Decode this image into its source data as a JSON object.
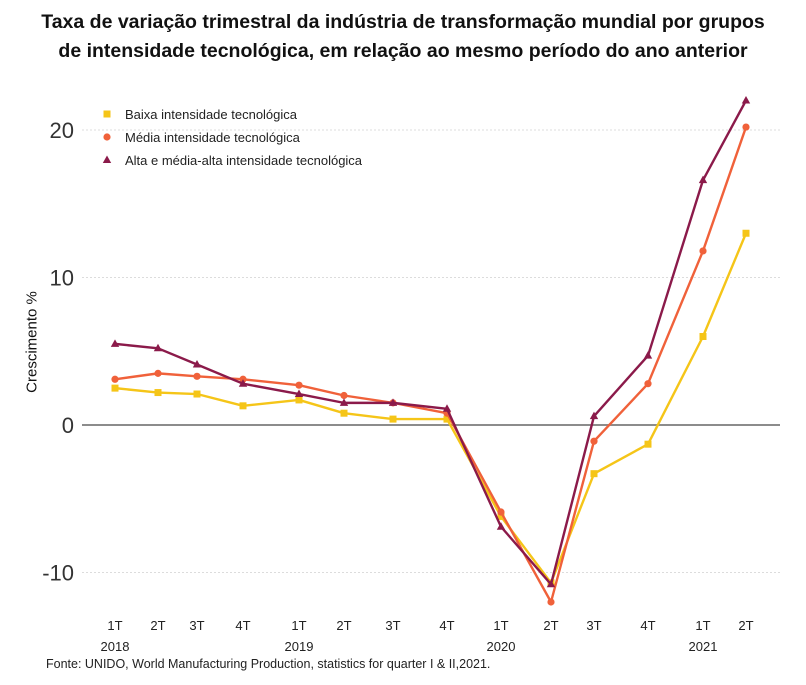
{
  "title_lines": [
    "Taxa de variação trimestral da indústria de transformação mundial por grupos",
    "de intensidade tecnológica, em relação ao mesmo período do ano anterior"
  ],
  "source": "Fonte: UNIDO, World Manufacturing Production, statistics for quarter I & II,2021.",
  "chart_data": {
    "type": "line",
    "title": "Taxa de variação trimestral da indústria de transformação mundial por grupos de intensidade tecnológica, em relação ao mesmo período do ano anterior",
    "xlabel": "",
    "ylabel": "Crescimento %",
    "ylim": [
      -12.5,
      22.5
    ],
    "yticks": [
      -10,
      0,
      10,
      20
    ],
    "grid": "horizontal dotted",
    "legend_position": "top-left",
    "categories": [
      "1T 2018",
      "2T 2018",
      "3T 2018",
      "4T 2018",
      "1T 2019",
      "2T 2019",
      "3T 2019",
      "4T 2019",
      "1T 2020",
      "2T 2020",
      "3T 2020",
      "4T 2020",
      "1T 2021",
      "2T 2021"
    ],
    "quarter_labels": [
      "1T",
      "2T",
      "3T",
      "4T",
      "1T",
      "2T",
      "3T",
      "4T",
      "1T",
      "2T",
      "3T",
      "4T",
      "1T",
      "2T"
    ],
    "year_labels": [
      {
        "index": 0,
        "label": "2018"
      },
      {
        "index": 4,
        "label": "2019"
      },
      {
        "index": 8,
        "label": "2020"
      },
      {
        "index": 12,
        "label": "2021"
      }
    ],
    "series": [
      {
        "name": "Baixa intensidade tecnológica",
        "color": "#f5c518",
        "marker": "square",
        "values": [
          2.5,
          2.2,
          2.1,
          1.3,
          1.7,
          0.8,
          0.4,
          0.4,
          -6.2,
          -10.7,
          -3.3,
          -1.3,
          6.0,
          13.0
        ]
      },
      {
        "name": "Média intensidade tecnológica",
        "color": "#f0613a",
        "marker": "circle",
        "values": [
          3.1,
          3.5,
          3.3,
          3.1,
          2.7,
          2.0,
          1.5,
          0.8,
          -5.9,
          -12.0,
          -1.1,
          2.8,
          11.8,
          20.2
        ]
      },
      {
        "name": "Alta e média-alta intensidade tecnológica",
        "color": "#8b1a4a",
        "marker": "triangle",
        "values": [
          5.5,
          5.2,
          4.1,
          2.8,
          2.1,
          1.5,
          1.5,
          1.1,
          -6.9,
          -10.8,
          0.6,
          4.7,
          16.6,
          22.0
        ]
      }
    ]
  }
}
